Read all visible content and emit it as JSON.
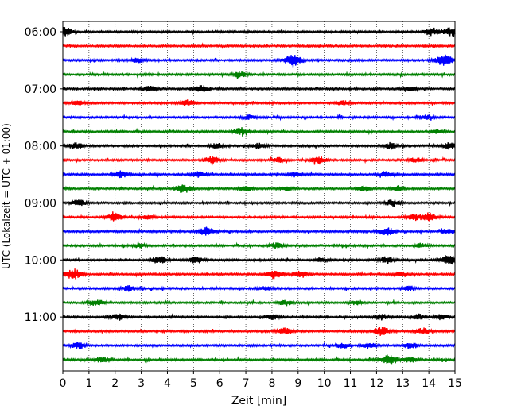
{
  "chart_data": {
    "type": "line",
    "xlabel": "Zeit  [min]",
    "ylabel": "UTC (Lokalzeit = UTC + 01:00)",
    "xlim": [
      0,
      15
    ],
    "x_ticks": [
      0,
      1,
      2,
      3,
      4,
      5,
      6,
      7,
      8,
      9,
      10,
      11,
      12,
      13,
      14,
      15
    ],
    "x_tick_labels": [
      "0",
      "1",
      "2",
      "3",
      "4",
      "5",
      "6",
      "7",
      "8",
      "9",
      "10",
      "11",
      "12",
      "13",
      "14",
      "15"
    ],
    "vertical_grid": true,
    "y_tick_labels": [
      "06:00",
      "07:00",
      "08:00",
      "09:00",
      "10:00",
      "11:00"
    ],
    "y_tick_rows": [
      0,
      4,
      8,
      12,
      16,
      20
    ],
    "row_colors": [
      "#000000",
      "#ff0000",
      "#0000ff",
      "#008000"
    ],
    "traces": [
      {
        "start": "06:00",
        "color": "#000000",
        "bursts": [
          [
            0.1,
            0.8
          ],
          [
            14.1,
            0.7
          ],
          [
            14.8,
            0.8
          ]
        ]
      },
      {
        "start": "06:15",
        "color": "#ff0000",
        "bursts": []
      },
      {
        "start": "06:30",
        "color": "#0000ff",
        "bursts": [
          [
            2.9,
            0.4
          ],
          [
            8.8,
            1.0
          ],
          [
            14.6,
            1.0
          ]
        ]
      },
      {
        "start": "06:45",
        "color": "#008000",
        "bursts": [
          [
            6.8,
            0.6
          ]
        ]
      },
      {
        "start": "07:00",
        "color": "#000000",
        "bursts": [
          [
            3.3,
            0.5
          ],
          [
            5.3,
            0.7
          ],
          [
            13.3,
            0.4
          ]
        ]
      },
      {
        "start": "07:15",
        "color": "#ff0000",
        "bursts": [
          [
            0.6,
            0.4
          ],
          [
            4.8,
            0.6
          ],
          [
            10.7,
            0.4
          ]
        ]
      },
      {
        "start": "07:30",
        "color": "#0000ff",
        "bursts": [
          [
            7.1,
            0.4
          ],
          [
            13.9,
            0.5
          ]
        ]
      },
      {
        "start": "07:45",
        "color": "#008000",
        "bursts": [
          [
            6.8,
            0.6
          ],
          [
            14.3,
            0.4
          ]
        ]
      },
      {
        "start": "08:00",
        "color": "#000000",
        "bursts": [
          [
            0.5,
            0.6
          ],
          [
            5.9,
            0.5
          ],
          [
            7.5,
            0.5
          ],
          [
            12.5,
            0.6
          ],
          [
            14.8,
            0.6
          ]
        ]
      },
      {
        "start": "08:15",
        "color": "#ff0000",
        "bursts": [
          [
            5.7,
            0.7
          ],
          [
            8.2,
            0.5
          ],
          [
            9.8,
            0.7
          ],
          [
            13.5,
            0.4
          ]
        ]
      },
      {
        "start": "08:30",
        "color": "#0000ff",
        "bursts": [
          [
            2.2,
            0.6
          ],
          [
            5.2,
            0.5
          ],
          [
            8.9,
            0.4
          ],
          [
            12.4,
            0.5
          ]
        ]
      },
      {
        "start": "08:45",
        "color": "#008000",
        "bursts": [
          [
            4.6,
            0.8
          ],
          [
            7.0,
            0.5
          ],
          [
            8.5,
            0.4
          ],
          [
            11.5,
            0.5
          ],
          [
            12.8,
            0.4
          ]
        ]
      },
      {
        "start": "09:00",
        "color": "#000000",
        "bursts": [
          [
            0.6,
            0.6
          ],
          [
            12.6,
            0.6
          ]
        ]
      },
      {
        "start": "09:15",
        "color": "#ff0000",
        "bursts": [
          [
            2.0,
            0.8
          ],
          [
            3.2,
            0.5
          ],
          [
            13.4,
            0.6
          ],
          [
            14.0,
            0.8
          ]
        ]
      },
      {
        "start": "09:30",
        "color": "#0000ff",
        "bursts": [
          [
            5.5,
            0.8
          ],
          [
            12.4,
            0.7
          ],
          [
            14.7,
            0.5
          ]
        ]
      },
      {
        "start": "09:45",
        "color": "#008000",
        "bursts": [
          [
            2.9,
            0.4
          ],
          [
            8.2,
            0.5
          ],
          [
            13.7,
            0.4
          ]
        ]
      },
      {
        "start": "10:00",
        "color": "#000000",
        "bursts": [
          [
            3.7,
            0.7
          ],
          [
            5.1,
            0.6
          ],
          [
            9.9,
            0.5
          ],
          [
            12.4,
            0.6
          ],
          [
            14.8,
            1.0
          ]
        ]
      },
      {
        "start": "10:15",
        "color": "#ff0000",
        "bursts": [
          [
            0.4,
            1.0
          ],
          [
            8.1,
            0.8
          ],
          [
            9.1,
            0.6
          ],
          [
            12.9,
            0.4
          ]
        ]
      },
      {
        "start": "10:30",
        "color": "#0000ff",
        "bursts": [
          [
            2.5,
            0.5
          ],
          [
            7.8,
            0.4
          ],
          [
            13.2,
            0.4
          ]
        ]
      },
      {
        "start": "10:45",
        "color": "#008000",
        "bursts": [
          [
            1.3,
            0.6
          ],
          [
            8.5,
            0.5
          ],
          [
            11.2,
            0.4
          ]
        ]
      },
      {
        "start": "11:00",
        "color": "#000000",
        "bursts": [
          [
            2.1,
            0.6
          ],
          [
            8.0,
            0.5
          ],
          [
            12.2,
            0.5
          ],
          [
            13.6,
            0.5
          ],
          [
            14.5,
            0.5
          ]
        ]
      },
      {
        "start": "11:15",
        "color": "#ff0000",
        "bursts": [
          [
            8.5,
            0.6
          ],
          [
            12.2,
            0.8
          ],
          [
            13.8,
            0.6
          ]
        ]
      },
      {
        "start": "11:30",
        "color": "#0000ff",
        "bursts": [
          [
            0.6,
            0.6
          ],
          [
            10.7,
            0.5
          ],
          [
            11.7,
            0.6
          ],
          [
            13.3,
            0.6
          ]
        ]
      },
      {
        "start": "11:45",
        "color": "#008000",
        "bursts": [
          [
            1.5,
            0.5
          ],
          [
            12.5,
            0.9
          ],
          [
            13.3,
            0.5
          ]
        ]
      }
    ]
  }
}
